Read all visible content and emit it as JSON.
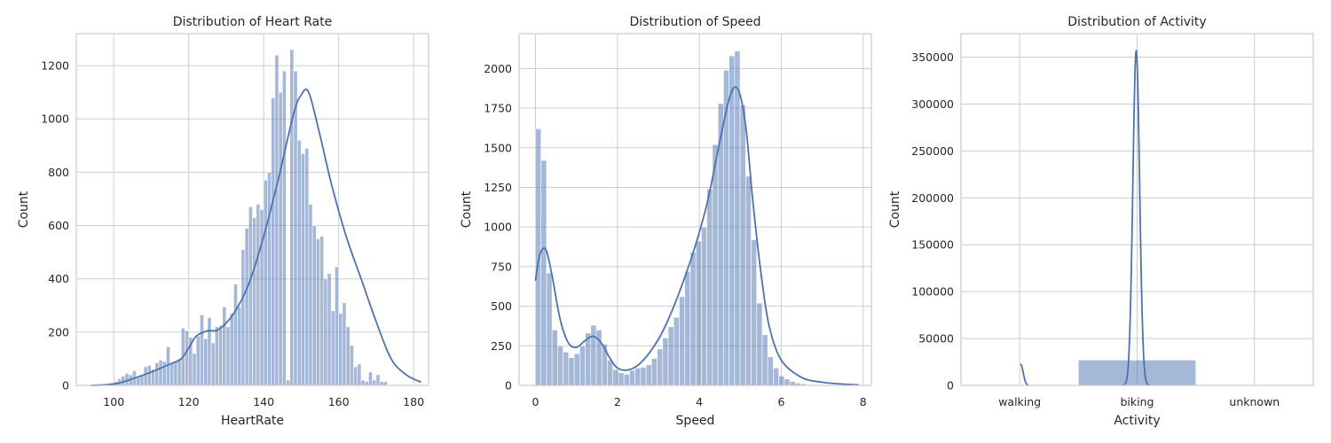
{
  "colors": {
    "bar_fill": "#4c72b0",
    "bar_alpha": 0.5,
    "line": "#4c72b0",
    "grid": "#cccccc",
    "frame": "#cccccc",
    "background": "#ffffff"
  },
  "chart_data": [
    {
      "type": "histogram",
      "title": "Distribution of Heart Rate",
      "xlabel": "HeartRate",
      "ylabel": "Count",
      "xlim": [
        90,
        184
      ],
      "ylim": [
        0,
        1320
      ],
      "xticks": [
        100,
        120,
        140,
        160,
        180
      ],
      "yticks": [
        0,
        200,
        400,
        600,
        800,
        1000,
        1200
      ],
      "grid": true,
      "bins": {
        "start": 94,
        "width": 1,
        "counts": [
          2,
          3,
          4,
          5,
          8,
          10,
          15,
          25,
          35,
          45,
          40,
          55,
          30,
          40,
          70,
          75,
          60,
          85,
          95,
          90,
          145,
          85,
          90,
          100,
          215,
          205,
          180,
          120,
          185,
          265,
          175,
          255,
          160,
          220,
          225,
          295,
          220,
          270,
          380,
          295,
          510,
          590,
          670,
          630,
          680,
          660,
          770,
          800,
          1080,
          1240,
          1100,
          1180,
          20,
          1260,
          1180,
          920,
          870,
          890,
          680,
          600,
          550,
          560,
          400,
          420,
          280,
          445,
          270,
          310,
          220,
          150,
          70,
          80,
          20,
          15,
          50,
          20,
          40,
          15,
          15
        ]
      },
      "kde": {
        "x": [
          94,
          100,
          104,
          110,
          115,
          118,
          120,
          122,
          125,
          128,
          132,
          136,
          140,
          144,
          148,
          150,
          152,
          155,
          158,
          162,
          166,
          170,
          174,
          178,
          182
        ],
        "y": [
          0,
          5,
          20,
          50,
          80,
          100,
          140,
          185,
          205,
          210,
          270,
          380,
          560,
          780,
          1020,
          1090,
          1100,
          940,
          760,
          560,
          400,
          240,
          100,
          40,
          12
        ]
      }
    },
    {
      "type": "histogram",
      "title": "Distribution of Speed",
      "xlabel": "Speed",
      "ylabel": "Count",
      "xlim": [
        -0.4,
        8.2
      ],
      "ylim": [
        0,
        2220
      ],
      "xticks": [
        0,
        2,
        4,
        6,
        8
      ],
      "yticks": [
        0,
        250,
        500,
        750,
        1000,
        1250,
        1500,
        1750,
        2000
      ],
      "grid": true,
      "bins": {
        "start": 0,
        "width": 0.135,
        "counts": [
          1620,
          1420,
          710,
          350,
          250,
          210,
          175,
          200,
          250,
          330,
          380,
          350,
          260,
          160,
          100,
          80,
          70,
          95,
          110,
          115,
          130,
          170,
          230,
          300,
          370,
          430,
          560,
          720,
          840,
          910,
          1000,
          1240,
          1520,
          1780,
          1990,
          2080,
          2110,
          1770,
          1320,
          920,
          520,
          320,
          180,
          110,
          60,
          40,
          25,
          15,
          10,
          5,
          3,
          2
        ]
      },
      "kde": {
        "x": [
          0,
          0.1,
          0.25,
          0.4,
          0.6,
          0.8,
          1.0,
          1.2,
          1.4,
          1.6,
          1.8,
          2.0,
          2.3,
          2.6,
          3.0,
          3.3,
          3.6,
          3.9,
          4.2,
          4.5,
          4.7,
          4.85,
          5.0,
          5.15,
          5.3,
          5.5,
          5.7,
          6.0,
          6.5,
          7.0,
          7.5,
          7.9
        ],
        "y": [
          660,
          820,
          860,
          700,
          420,
          270,
          240,
          280,
          310,
          270,
          180,
          110,
          100,
          150,
          290,
          450,
          650,
          880,
          1160,
          1540,
          1780,
          1880,
          1830,
          1600,
          1180,
          720,
          380,
          160,
          50,
          20,
          8,
          3
        ]
      }
    },
    {
      "type": "histogram",
      "title": "Distribution of Activity",
      "xlabel": "Activity",
      "ylabel": "Count",
      "categories": [
        "walking",
        "biking",
        "unknown"
      ],
      "ylim": [
        0,
        375000
      ],
      "yticks": [
        0,
        50000,
        100000,
        150000,
        200000,
        250000,
        300000,
        350000
      ],
      "grid": true,
      "values": [
        0,
        27000,
        0
      ],
      "kde": {
        "walking_peak": 23000,
        "biking_peak": 357000
      }
    }
  ]
}
